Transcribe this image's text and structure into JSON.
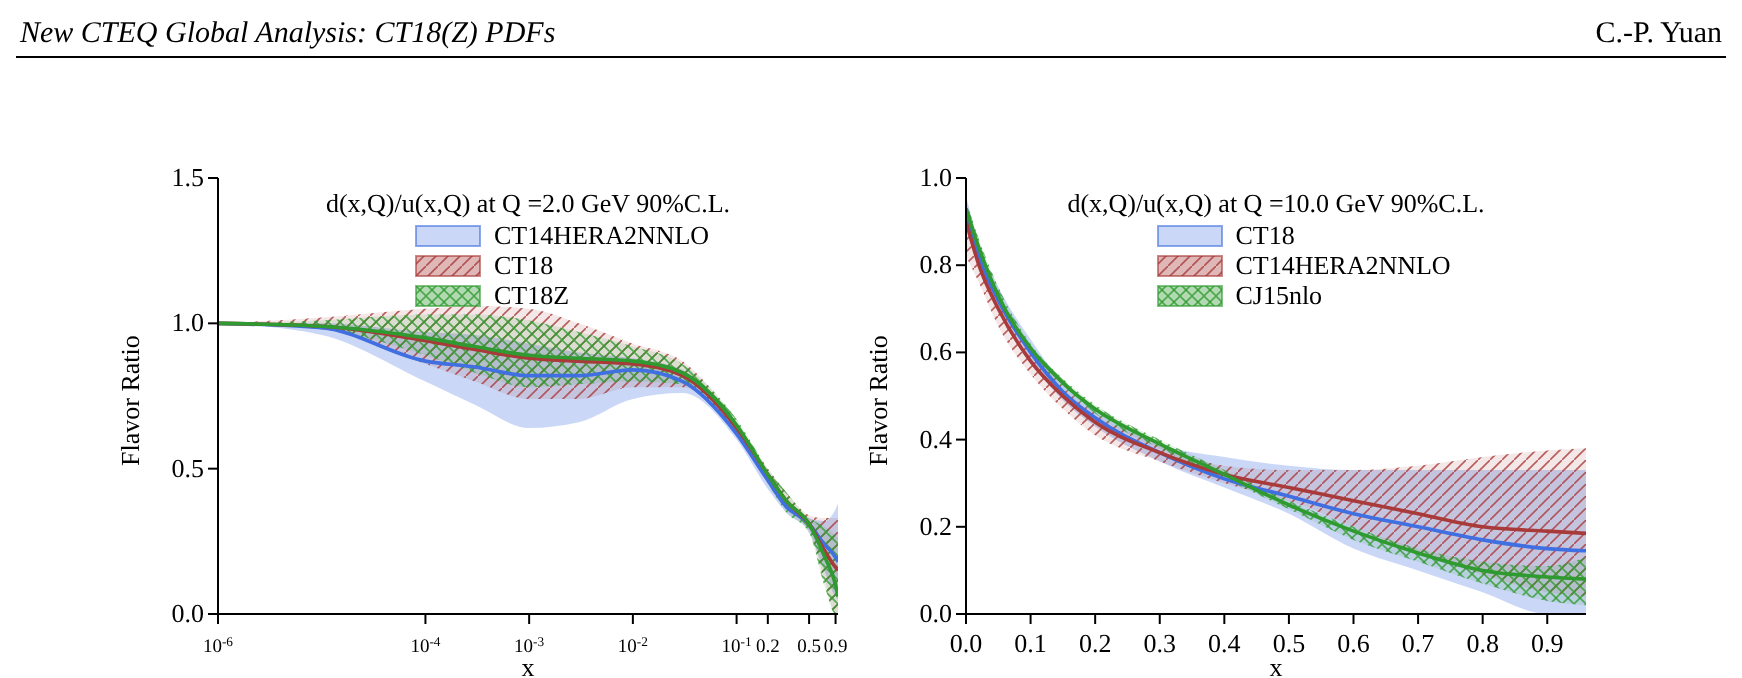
{
  "chart_data": [
    {
      "type": "line",
      "annotations": [
        "New CTEQ Global Analysis: CT18(Z) PDFs"
      ],
      "legend_title": "d(x,Q)/u(x,Q) at Q =2.0 GeV 90%C.L.",
      "xlabel": "x",
      "ylabel": "Flavor Ratio",
      "legend": "top",
      "grid": false,
      "log": "x",
      "x": [
        1e-06,
        1e-05,
        0.0001,
        0.0003,
        0.001,
        0.003,
        0.01,
        0.03,
        0.1,
        0.2,
        0.3,
        0.5,
        0.7,
        0.9,
        0.95
      ],
      "xlim": [
        1e-06,
        0.95
      ],
      "xticks": [
        {
          "value": 1e-06,
          "label": "10$^{-6}$"
        },
        {
          "value": 0.0001,
          "label": "10$^{-4}$"
        },
        {
          "value": 0.001,
          "label": "10$^{-3}$"
        },
        {
          "value": 0.01,
          "label": "10$^{-2}$"
        },
        {
          "value": 0.1,
          "label": "10$^{-1}$"
        },
        0.2,
        0.5,
        0.9
      ],
      "ylim": [
        0,
        1.5
      ],
      "yticks": [
        {
          "value": 0,
          "label": "0.0"
        },
        {
          "value": 0.5,
          "label": "0.5"
        },
        {
          "value": 1,
          "label": "1.0"
        },
        {
          "value": 1.5,
          "label": "1.5"
        }
      ],
      "series": [
        {
          "name": "CT14HERA2NNLO",
          "color": "#3f6fe0",
          "values": [
            1.0,
            0.985,
            0.87,
            0.85,
            0.82,
            0.82,
            0.84,
            0.8,
            0.62,
            0.46,
            0.37,
            0.31,
            0.24,
            0.195,
            0.18
          ],
          "lower": [
            1.0,
            0.96,
            0.8,
            0.72,
            0.64,
            0.66,
            0.74,
            0.76,
            0.6,
            0.43,
            0.35,
            0.28,
            0.15,
            0.06,
            0.05
          ],
          "upper": [
            1.0,
            1.0,
            0.97,
            0.96,
            0.93,
            0.9,
            0.88,
            0.84,
            0.65,
            0.49,
            0.4,
            0.33,
            0.32,
            0.36,
            0.38
          ]
        },
        {
          "name": "CT18",
          "color": "#a83a3a",
          "values": [
            1.0,
            0.99,
            0.94,
            0.91,
            0.88,
            0.87,
            0.86,
            0.82,
            0.64,
            0.48,
            0.39,
            0.31,
            0.22,
            0.16,
            0.15
          ],
          "lower": [
            1.0,
            0.98,
            0.86,
            0.8,
            0.74,
            0.74,
            0.78,
            0.78,
            0.62,
            0.45,
            0.36,
            0.29,
            0.12,
            0.0,
            0.0
          ],
          "upper": [
            1.0,
            1.02,
            1.05,
            1.06,
            1.05,
            1.0,
            0.93,
            0.87,
            0.66,
            0.5,
            0.42,
            0.34,
            0.33,
            0.33,
            0.33
          ]
        },
        {
          "name": "CT18Z",
          "color": "#2f9a2f",
          "values": [
            1.0,
            0.99,
            0.95,
            0.92,
            0.89,
            0.88,
            0.87,
            0.83,
            0.65,
            0.48,
            0.39,
            0.31,
            0.2,
            0.1,
            0.06
          ],
          "lower": [
            1.0,
            0.98,
            0.89,
            0.83,
            0.78,
            0.79,
            0.8,
            0.79,
            0.62,
            0.45,
            0.35,
            0.28,
            0.1,
            0.0,
            0.0
          ],
          "upper": [
            1.0,
            1.01,
            1.03,
            1.03,
            1.01,
            0.97,
            0.92,
            0.86,
            0.67,
            0.5,
            0.42,
            0.33,
            0.3,
            0.27,
            0.26
          ]
        }
      ]
    },
    {
      "type": "line",
      "annotations": [
        "C.-P. Yuan"
      ],
      "legend_title": "d(x,Q)/u(x,Q) at Q =10.0 GeV 90%C.L.",
      "xlabel": "x",
      "ylabel": "Flavor Ratio",
      "legend": "top",
      "grid": false,
      "x": [
        0.0,
        0.02,
        0.05,
        0.1,
        0.15,
        0.2,
        0.3,
        0.4,
        0.5,
        0.6,
        0.7,
        0.8,
        0.9,
        0.96
      ],
      "xlim": [
        0,
        0.96
      ],
      "xticks": [
        {
          "value": 0,
          "label": "0.0"
        },
        0.1,
        0.2,
        0.3,
        0.4,
        0.5,
        0.6,
        0.7,
        0.8,
        0.9
      ],
      "ylim": [
        0,
        1
      ],
      "yticks": [
        {
          "value": 0,
          "label": "0.0"
        },
        0.2,
        0.4,
        0.6,
        0.8,
        {
          "value": 1,
          "label": "1.0"
        }
      ],
      "series": [
        {
          "name": "CT18",
          "color": "#3f6fe0",
          "values": [
            0.93,
            0.82,
            0.72,
            0.6,
            0.51,
            0.45,
            0.37,
            0.31,
            0.27,
            0.23,
            0.2,
            0.17,
            0.15,
            0.145
          ],
          "lower": [
            0.9,
            0.8,
            0.7,
            0.58,
            0.49,
            0.43,
            0.35,
            0.29,
            0.23,
            0.15,
            0.1,
            0.05,
            0.0,
            0.0
          ],
          "upper": [
            0.96,
            0.85,
            0.75,
            0.63,
            0.53,
            0.47,
            0.39,
            0.36,
            0.34,
            0.33,
            0.33,
            0.33,
            0.33,
            0.33
          ]
        },
        {
          "name": "CT14HERA2NNLO",
          "color": "#a83a3a",
          "values": [
            0.9,
            0.8,
            0.7,
            0.58,
            0.5,
            0.44,
            0.37,
            0.32,
            0.29,
            0.26,
            0.23,
            0.2,
            0.19,
            0.185
          ],
          "lower": [
            0.82,
            0.76,
            0.66,
            0.55,
            0.47,
            0.41,
            0.35,
            0.3,
            0.26,
            0.2,
            0.14,
            0.09,
            0.05,
            0.04
          ],
          "upper": [
            0.92,
            0.83,
            0.73,
            0.61,
            0.52,
            0.46,
            0.39,
            0.34,
            0.33,
            0.33,
            0.34,
            0.36,
            0.375,
            0.38
          ]
        },
        {
          "name": "CJ15nlo",
          "color": "#2f9a2f",
          "values": [
            0.93,
            0.84,
            0.73,
            0.61,
            0.53,
            0.47,
            0.39,
            0.32,
            0.25,
            0.19,
            0.14,
            0.1,
            0.085,
            0.08
          ],
          "lower": [
            0.91,
            0.83,
            0.72,
            0.6,
            0.52,
            0.46,
            0.38,
            0.31,
            0.24,
            0.17,
            0.12,
            0.07,
            0.03,
            0.02
          ],
          "upper": [
            0.95,
            0.86,
            0.75,
            0.62,
            0.54,
            0.48,
            0.4,
            0.33,
            0.26,
            0.2,
            0.15,
            0.12,
            0.11,
            0.13
          ]
        }
      ]
    }
  ]
}
